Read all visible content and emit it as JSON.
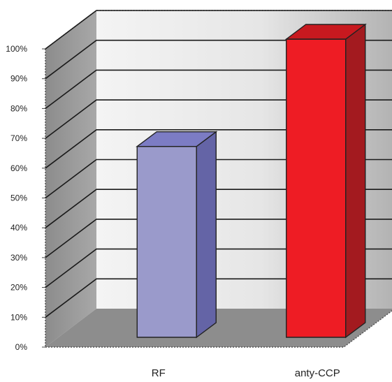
{
  "chart_data": {
    "type": "bar",
    "categories": [
      "RF",
      "anty-CCP"
    ],
    "values": [
      64,
      100
    ],
    "ylim": [
      0,
      100
    ],
    "yticks": [
      "0%",
      "10%",
      "20%",
      "30%",
      "40%",
      "50%",
      "60%",
      "70%",
      "80%",
      "90%",
      "100%"
    ],
    "grid": true,
    "legend": "none",
    "three_d": true,
    "colors": {
      "RF": {
        "front": "#9a9acb",
        "side": "#6464a6",
        "top": "#7c7cc4"
      },
      "anty-CCP": {
        "front": "#ee1c24",
        "side": "#a31a1f",
        "top": "#c8191f"
      },
      "back_wall_light": "#f2f2f2",
      "back_wall_dark": "#b4b4b4",
      "side_wall": "#9b9b9b",
      "floor": "#8d8d8d",
      "gridline": "#1a1a1a"
    }
  }
}
